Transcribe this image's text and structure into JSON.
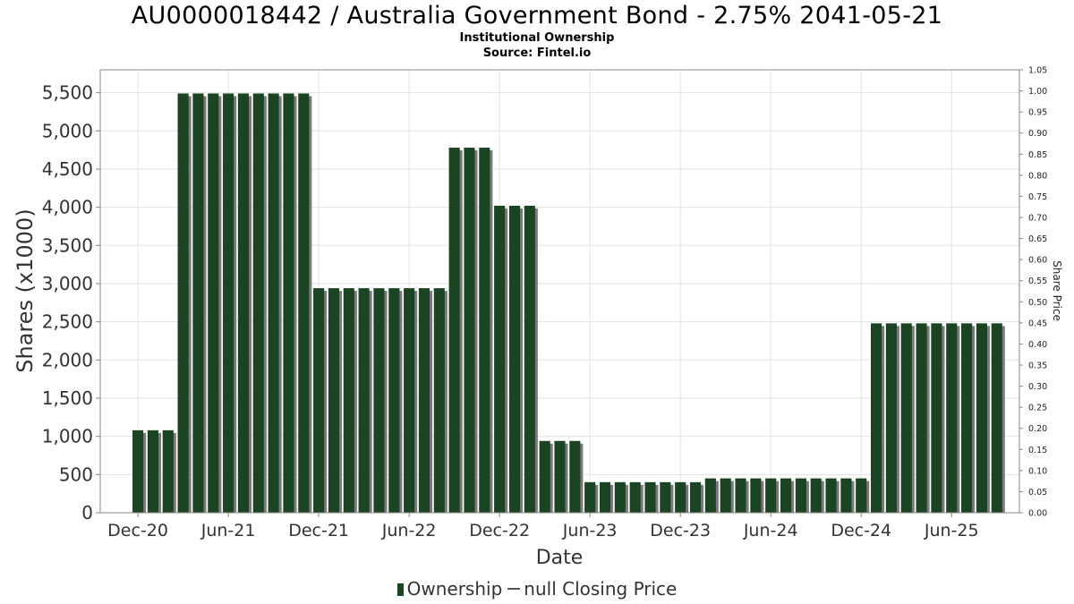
{
  "chart_data": {
    "type": "bar",
    "title": "AU0000018442 / Australia Government Bond - 2.75% 2041-05-21",
    "subtitle": "Institutional Ownership",
    "source": "Source: Fintel.io",
    "xlabel": "Date",
    "ylabel": "Shares (x1000)",
    "y2label": "Share Price",
    "ylim": [
      0,
      5800
    ],
    "y2lim": [
      0,
      1.05
    ],
    "yticks": [
      0,
      500,
      1000,
      1500,
      2000,
      2500,
      3000,
      3500,
      4000,
      4500,
      5000,
      5500
    ],
    "ytick_labels": [
      "0",
      "500",
      "1,000",
      "1,500",
      "2,000",
      "2,500",
      "3,000",
      "3,500",
      "4,000",
      "4,500",
      "5,000",
      "5,500"
    ],
    "y2ticks": [
      "0.00",
      "0.05",
      "0.10",
      "0.15",
      "0.20",
      "0.25",
      "0.30",
      "0.35",
      "0.40",
      "0.45",
      "0.50",
      "0.55",
      "0.60",
      "0.65",
      "0.70",
      "0.75",
      "0.80",
      "0.85",
      "0.90",
      "0.95",
      "1.00",
      "1.05"
    ],
    "x_tick_labels": [
      "Dec-20",
      "Jun-21",
      "Dec-21",
      "Jun-22",
      "Dec-22",
      "Jun-23",
      "Dec-23",
      "Jun-24",
      "Dec-24",
      "Jun-25"
    ],
    "x_tick_slots": [
      2,
      8,
      14,
      20,
      26,
      32,
      38,
      44,
      50,
      56
    ],
    "slot_count": 61,
    "grid": true,
    "legend_position": "bottom",
    "series": [
      {
        "name": "Ownership",
        "color": "#1b4423",
        "start_slot": 2,
        "values": [
          1080,
          1080,
          1080,
          5490,
          5490,
          5490,
          5490,
          5490,
          5490,
          5490,
          5490,
          5490,
          2940,
          2940,
          2940,
          2940,
          2940,
          2940,
          2940,
          2940,
          2940,
          4780,
          4780,
          4780,
          4020,
          4020,
          4020,
          940,
          940,
          940,
          400,
          400,
          400,
          400,
          400,
          400,
          400,
          400,
          450,
          450,
          450,
          450,
          450,
          450,
          450,
          450,
          450,
          450,
          450,
          2480,
          2480,
          2480,
          2480,
          2480,
          2480,
          2480,
          2480,
          2480
        ]
      }
    ],
    "legend": {
      "ownership_label": "Ownership",
      "price_label": "null Closing Price"
    }
  }
}
